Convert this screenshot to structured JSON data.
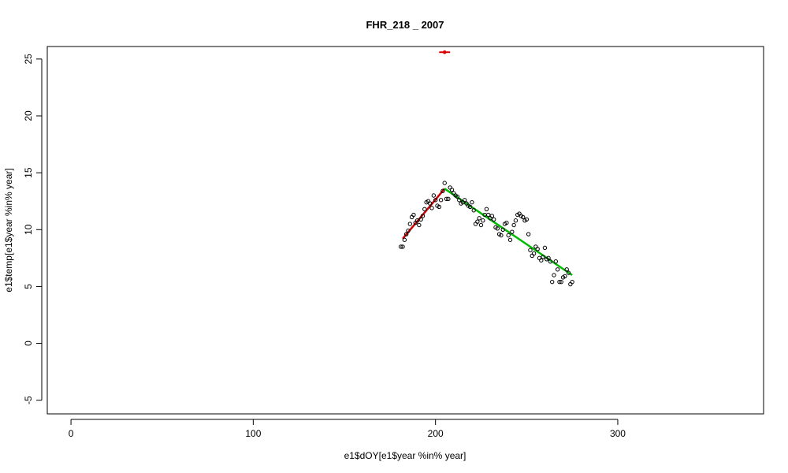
{
  "chart_data": {
    "type": "scatter",
    "title": "FHR_218 _ 2007",
    "xlabel": "e1$dOY[e1$year %in% year]",
    "ylabel": "e1$temp[e1$year %in% year]",
    "xlim": [
      -13,
      380
    ],
    "ylim": [
      -6.2,
      26.1
    ],
    "x_ticks": [
      0,
      100,
      200,
      300
    ],
    "y_ticks": [
      -5,
      0,
      5,
      10,
      15,
      20,
      25
    ],
    "grid": false,
    "legend": "none",
    "colors": {
      "points": "#000000",
      "rising_fit": "#cc0000",
      "falling_fit": "#00bb00",
      "peak_marker": "#dd0000"
    },
    "points": [
      [
        181,
        8.5
      ],
      [
        182,
        8.5
      ],
      [
        183,
        9.1
      ],
      [
        184,
        9.6
      ],
      [
        185,
        9.9
      ],
      [
        186,
        10.5
      ],
      [
        187,
        11.1
      ],
      [
        188,
        11.3
      ],
      [
        189,
        10.6
      ],
      [
        190,
        10.8
      ],
      [
        191,
        10.4
      ],
      [
        192,
        10.9
      ],
      [
        193,
        11.2
      ],
      [
        194,
        11.8
      ],
      [
        195,
        12.4
      ],
      [
        196,
        12.5
      ],
      [
        197,
        12.3
      ],
      [
        198,
        11.9
      ],
      [
        199,
        13.0
      ],
      [
        200,
        12.6
      ],
      [
        201,
        12.1
      ],
      [
        202,
        12.0
      ],
      [
        203,
        12.6
      ],
      [
        204,
        13.4
      ],
      [
        205,
        14.1
      ],
      [
        206,
        12.7
      ],
      [
        207,
        12.7
      ],
      [
        208,
        13.7
      ],
      [
        209,
        13.5
      ],
      [
        210,
        13.2
      ],
      [
        211,
        13.0
      ],
      [
        212,
        12.9
      ],
      [
        213,
        12.6
      ],
      [
        214,
        12.3
      ],
      [
        215,
        12.4
      ],
      [
        216,
        12.6
      ],
      [
        217,
        12.3
      ],
      [
        218,
        12.1
      ],
      [
        219,
        12.0
      ],
      [
        220,
        12.4
      ],
      [
        221,
        11.7
      ],
      [
        222,
        10.5
      ],
      [
        223,
        10.7
      ],
      [
        224,
        11.0
      ],
      [
        225,
        10.4
      ],
      [
        226,
        10.8
      ],
      [
        227,
        11.3
      ],
      [
        228,
        11.8
      ],
      [
        229,
        11.3
      ],
      [
        230,
        11.0
      ],
      [
        231,
        11.2
      ],
      [
        232,
        10.9
      ],
      [
        233,
        10.2
      ],
      [
        234,
        10.1
      ],
      [
        235,
        9.6
      ],
      [
        236,
        9.5
      ],
      [
        237,
        10.0
      ],
      [
        238,
        10.5
      ],
      [
        239,
        10.6
      ],
      [
        240,
        9.5
      ],
      [
        241,
        9.1
      ],
      [
        242,
        9.8
      ],
      [
        243,
        10.4
      ],
      [
        244,
        10.8
      ],
      [
        245,
        11.3
      ],
      [
        246,
        11.4
      ],
      [
        247,
        11.2
      ],
      [
        248,
        11.1
      ],
      [
        249,
        10.8
      ],
      [
        250,
        10.9
      ],
      [
        251,
        9.6
      ],
      [
        252,
        8.2
      ],
      [
        253,
        7.7
      ],
      [
        254,
        7.9
      ],
      [
        255,
        8.5
      ],
      [
        256,
        8.3
      ],
      [
        257,
        7.5
      ],
      [
        258,
        7.3
      ],
      [
        259,
        7.6
      ],
      [
        260,
        8.4
      ],
      [
        261,
        7.4
      ],
      [
        262,
        7.5
      ],
      [
        263,
        7.2
      ],
      [
        264,
        5.4
      ],
      [
        265,
        6.0
      ],
      [
        266,
        7.2
      ],
      [
        267,
        6.5
      ],
      [
        268,
        5.4
      ],
      [
        269,
        5.4
      ],
      [
        270,
        5.8
      ],
      [
        271,
        5.9
      ],
      [
        272,
        6.5
      ],
      [
        273,
        6.2
      ],
      [
        274,
        5.2
      ],
      [
        275,
        5.4
      ]
    ],
    "fit_lines": [
      {
        "x": [
          182,
          205
        ],
        "y": [
          9.2,
          13.6
        ]
      },
      {
        "x": [
          205,
          275
        ],
        "y": [
          13.6,
          6.0
        ]
      }
    ],
    "peak_marker": {
      "x": [
        202,
        208
      ],
      "y": 25.6,
      "center_x": 205
    }
  }
}
